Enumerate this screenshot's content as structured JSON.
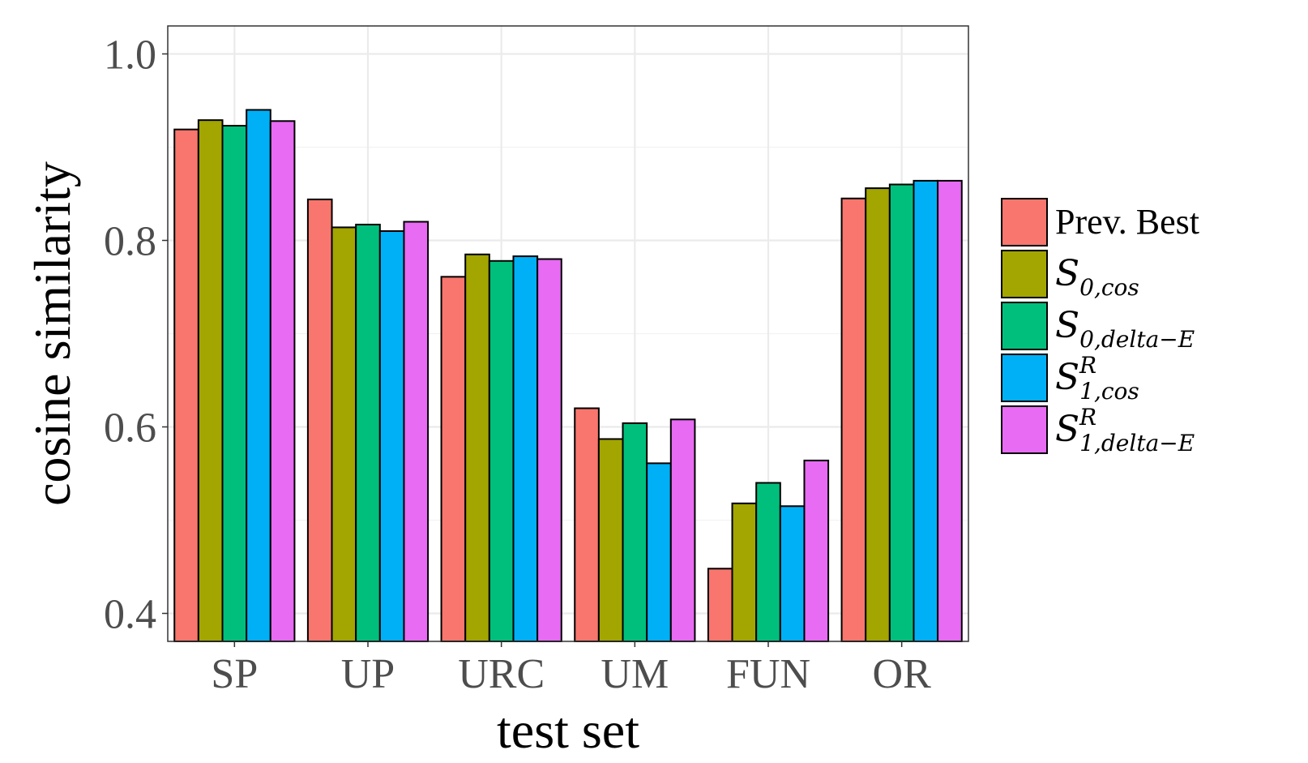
{
  "chart_data": {
    "type": "bar",
    "title": "",
    "xlabel": "test set",
    "ylabel": "cosine similarity",
    "categories": [
      "SP",
      "UP",
      "URC",
      "UM",
      "FUN",
      "OR"
    ],
    "ylim": [
      0.37,
      1.03
    ],
    "yticks": [
      0.4,
      0.6,
      0.8,
      1.0
    ],
    "ytick_labels": [
      "0.4",
      "0.6",
      "0.8",
      "1.0"
    ],
    "grid": true,
    "legend_position": "right",
    "series": [
      {
        "name": "Prev. Best",
        "legend": {
          "base": "Prev. Best",
          "sub": "",
          "sup": ""
        },
        "color": "#F8766D",
        "values": [
          0.919,
          0.844,
          0.761,
          0.62,
          0.448,
          0.845
        ]
      },
      {
        "name": "S0,cos",
        "legend": {
          "base": "S",
          "sub": "0,cos",
          "sup": ""
        },
        "color": "#A3A500",
        "values": [
          0.929,
          0.814,
          0.785,
          0.587,
          0.518,
          0.856
        ]
      },
      {
        "name": "S0,delta−E",
        "legend": {
          "base": "S",
          "sub": "0,delta−E",
          "sup": ""
        },
        "color": "#00BF7D",
        "values": [
          0.923,
          0.817,
          0.778,
          0.604,
          0.54,
          0.86
        ]
      },
      {
        "name": "S1,cos R",
        "legend": {
          "base": "S",
          "sub": "1,cos",
          "sup": "R"
        },
        "color": "#00B0F6",
        "values": [
          0.94,
          0.81,
          0.783,
          0.561,
          0.515,
          0.864
        ]
      },
      {
        "name": "S1,delta−E R",
        "legend": {
          "base": "S",
          "sub": "1,delta−E",
          "sup": "R"
        },
        "color": "#E76BF3",
        "values": [
          0.928,
          0.82,
          0.78,
          0.608,
          0.564,
          0.864
        ]
      }
    ]
  }
}
